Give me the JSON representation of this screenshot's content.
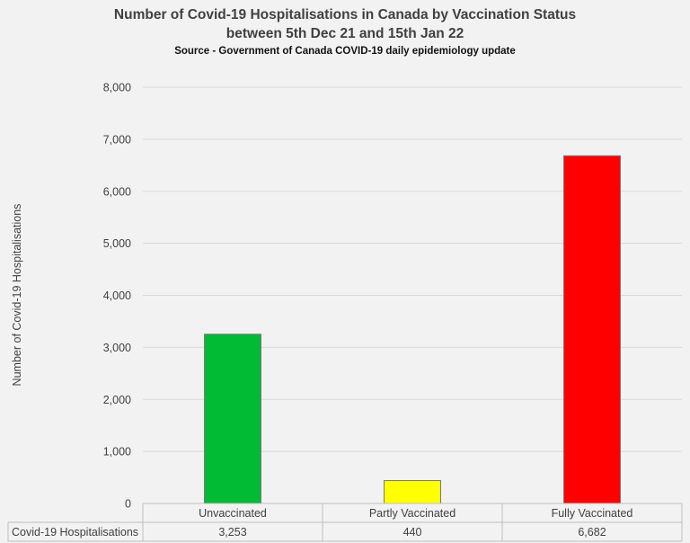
{
  "chart_data": {
    "type": "bar",
    "title_lines": [
      "Number of Covid-19 Hospitalisations in Canada by Vaccination Status",
      "between 5th Dec 21 and 15th Jan 22"
    ],
    "subtitle": "Source - Government of Canada COVID-19 daily epidemiology update",
    "ylabel": "Number of Covid-19 Hospitalisations",
    "ylim": [
      0,
      8000
    ],
    "yticks": [
      0,
      1000,
      2000,
      3000,
      4000,
      5000,
      6000,
      7000,
      8000
    ],
    "ytick_labels": [
      "0",
      "1,000",
      "2,000",
      "3,000",
      "4,000",
      "5,000",
      "6,000",
      "7,000",
      "8,000"
    ],
    "grid": true,
    "categories": [
      "Unvaccinated",
      "Partly Vaccinated",
      "Fully Vaccinated"
    ],
    "series": [
      {
        "name": "Covid-19 Hospitalisations",
        "values": [
          3253,
          440,
          6682
        ],
        "value_labels": [
          "3,253",
          "440",
          "6,682"
        ],
        "colors": [
          "#00bb33",
          "#ffff00",
          "#ff0000"
        ]
      }
    ],
    "data_table": true
  }
}
